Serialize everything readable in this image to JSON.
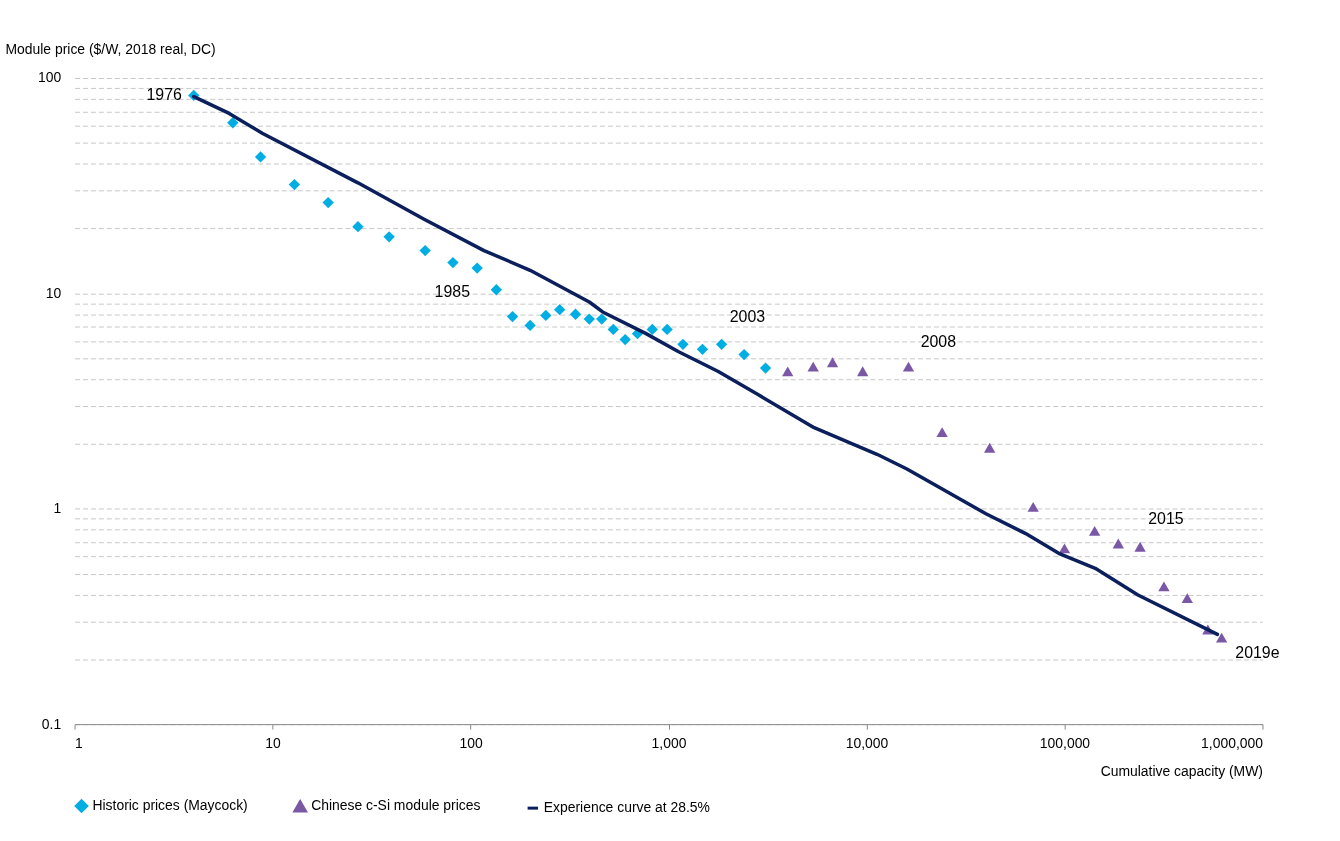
{
  "chart_data": {
    "type": "scatter",
    "xlabel": "Cumulative capacity (MW)",
    "ylabel": "Module price ($/W, 2018 real, DC)",
    "log": "xy",
    "grid": "y",
    "legend": "bottom",
    "xlim": [
      1,
      1000000
    ],
    "xticks": [
      1,
      10,
      100,
      {
        "value": 1000,
        "label": "1,000"
      },
      {
        "value": 10000,
        "label": "10,000"
      },
      {
        "value": 100000,
        "label": "100,000"
      },
      {
        "value": 1000000,
        "label": "1,000,000"
      }
    ],
    "ylim": [
      0.1,
      100
    ],
    "yticks": [
      0.1,
      {
        "value": 0.2,
        "label": null
      },
      {
        "value": 0.3,
        "label": null
      },
      {
        "value": 0.4,
        "label": null
      },
      {
        "value": 0.5,
        "label": null
      },
      {
        "value": 0.6,
        "label": null
      },
      {
        "value": 0.7,
        "label": null
      },
      {
        "value": 0.8,
        "label": null
      },
      {
        "value": 0.9,
        "label": null
      },
      1,
      {
        "value": 2,
        "label": null
      },
      {
        "value": 3,
        "label": null
      },
      {
        "value": 4,
        "label": null
      },
      {
        "value": 5,
        "label": null
      },
      {
        "value": 6,
        "label": null
      },
      {
        "value": 7,
        "label": null
      },
      {
        "value": 8,
        "label": null
      },
      {
        "value": 9,
        "label": null
      },
      10,
      {
        "value": 20,
        "label": null
      },
      {
        "value": 30,
        "label": null
      },
      {
        "value": 40,
        "label": null
      },
      {
        "value": 50,
        "label": null
      },
      {
        "value": 60,
        "label": null
      },
      {
        "value": 70,
        "label": null
      },
      {
        "value": 80,
        "label": null
      },
      {
        "value": 90,
        "label": null
      },
      100
    ],
    "series": [
      {
        "name": "Historic prices (Maycock)",
        "marker": "diamond",
        "color": "#00aee4",
        "x": [
          4,
          6.3,
          8.7,
          12.9,
          19.1,
          27,
          38.8,
          59,
          81.5,
          108,
          135,
          163,
          200,
          240,
          282,
          339,
          398,
          460,
          526,
          604,
          697,
          828,
          984,
          1183,
          1484,
          1854,
          2409,
          3092
        ],
        "values": [
          83,
          62,
          43,
          32,
          26.4,
          20.4,
          18.3,
          15.8,
          13.9,
          13.1,
          10.4,
          7.8,
          7.1,
          7.9,
          8.4,
          8,
          7.6,
          7.6,
          6.8,
          6.1,
          6.5,
          6.8,
          6.8,
          5.8,
          5.5,
          5.8,
          5.2,
          4.5
        ]
      },
      {
        "name": "Chinese c-Si module prices",
        "marker": "triangle",
        "color": "#7b58a6",
        "x": [
          4000,
          5380,
          6740,
          9570,
          16300,
          24100,
          41900,
          69500,
          100000,
          142000,
          187000,
          241000,
          318000,
          417000,
          530000,
          622000
        ],
        "values": [
          4.34,
          4.57,
          4.79,
          4.35,
          4.57,
          2.27,
          1.92,
          1.02,
          0.655,
          0.79,
          0.69,
          0.666,
          0.436,
          0.385,
          0.275,
          0.252
        ]
      },
      {
        "name": "Experience curve at 28.5%",
        "type": "line",
        "color": "#0b1f5c",
        "x": [
          4,
          6.04,
          8.87,
          27,
          58.3,
          117,
          200,
          398,
          465,
          766,
          1125,
          1784,
          2830,
          5440,
          11300,
          16000,
          40100,
          63700,
          93500,
          143000,
          235000,
          592000
        ],
        "values": [
          82,
          68.5,
          55.4,
          32.6,
          22.1,
          15.8,
          12.8,
          9.12,
          8.2,
          6.52,
          5.36,
          4.34,
          3.39,
          2.38,
          1.79,
          1.53,
          0.948,
          0.767,
          0.621,
          0.529,
          0.398,
          0.261
        ]
      }
    ],
    "annotations": [
      {
        "text": "1976",
        "x": 4,
        "y": 83
      },
      {
        "text": "1985",
        "x": 108,
        "y": 13.1
      },
      {
        "text": "2003",
        "x": 1854,
        "y": 5.8
      },
      {
        "text": "2008",
        "x": 16300,
        "y": 4.57
      },
      {
        "text": "2015",
        "x": 241000,
        "y": 0.666
      },
      {
        "text": "2019e",
        "x": 622000,
        "y": 0.252
      }
    ]
  }
}
